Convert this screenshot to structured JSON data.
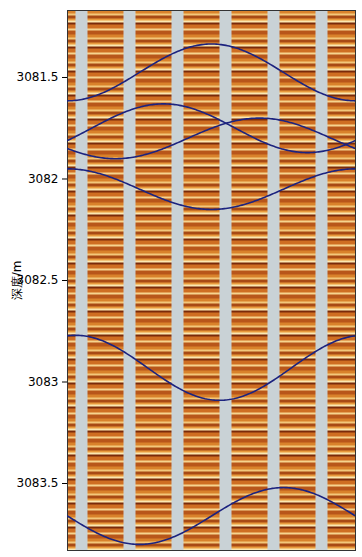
{
  "chart_data": {
    "type": "line",
    "ylabel": "深度/m",
    "ylim": [
      3081.17,
      3083.83
    ],
    "yticks": [
      3081.5,
      3082,
      3082.5,
      3083,
      3083.5
    ],
    "xlim": [
      0,
      360
    ],
    "tick_labels": "y",
    "color": "#1c237f",
    "sinusoids": [
      {
        "depth": 3081.475,
        "amplitude": 0.14,
        "trough_azimuth": 0
      },
      {
        "depth": 3081.75,
        "amplitude": 0.12,
        "trough_azimuth": 300
      },
      {
        "depth": 3081.8,
        "amplitude": 0.1,
        "trough_azimuth": 60
      },
      {
        "depth": 3082.05,
        "amplitude": 0.1,
        "trough_azimuth": 180
      },
      {
        "depth": 3082.93,
        "amplitude": 0.16,
        "trough_azimuth": 190
      },
      {
        "depth": 3083.66,
        "amplitude": 0.14,
        "trough_azimuth": 90
      }
    ]
  }
}
